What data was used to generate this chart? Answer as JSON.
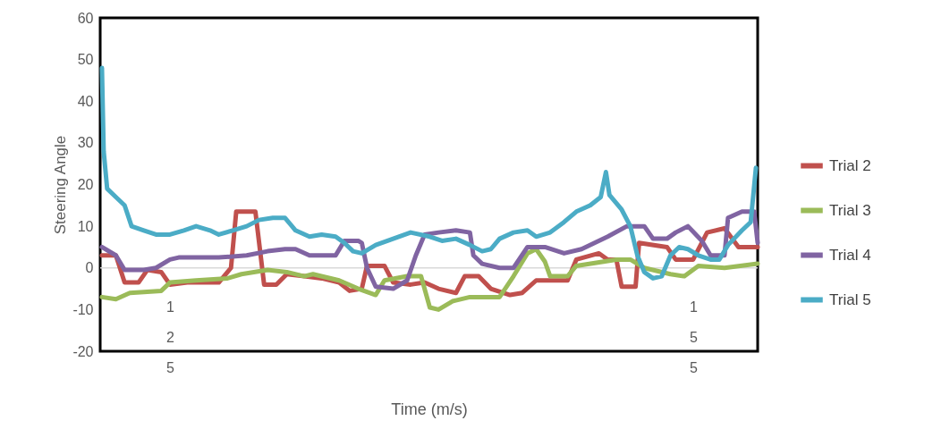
{
  "chart_data": {
    "type": "line",
    "xlabel": "Time (m/s)",
    "ylabel": "Steering Angle",
    "xlim": [
      121,
      158.7
    ],
    "xticks": [
      125,
      155
    ],
    "ylim": [
      -20,
      60
    ],
    "yticks": [
      -20,
      -10,
      0,
      10,
      20,
      30,
      40,
      50,
      60
    ],
    "grid": false,
    "legend": "right",
    "marker": "none",
    "line_style": "solid",
    "ref_lines": [
      {
        "axis": "y",
        "value": 0,
        "color": "#d9d9d9"
      }
    ],
    "series": [
      {
        "name": "Trial 2",
        "color": "#c0504d",
        "x": [
          121.1,
          121.9,
          122.4,
          123.2,
          123.7,
          124.5,
          125.0,
          126.0,
          127.8,
          128.5,
          128.8,
          129.9,
          130.4,
          131.1,
          131.7,
          132.7,
          133.7,
          134.7,
          135.3,
          136.0,
          136.3,
          137.3,
          137.8,
          138.8,
          139.6,
          140.4,
          141.4,
          141.9,
          142.7,
          143.4,
          144.5,
          145.2,
          146.0,
          147.8,
          148.3,
          149.6,
          150.1,
          150.6,
          150.9,
          151.7,
          151.9,
          153.5,
          154.0,
          155.0,
          155.8,
          156.8,
          157.6,
          158.7
        ],
        "values": [
          3,
          3,
          -3.5,
          -3.5,
          -0.5,
          -1,
          -4,
          -3.5,
          -3.5,
          0,
          13.5,
          13.5,
          -4,
          -4,
          -1.5,
          -2,
          -2.5,
          -3.5,
          -5.5,
          -5,
          0.5,
          0.5,
          -3.5,
          -4,
          -3.5,
          -5,
          -6,
          -2,
          -2,
          -5,
          -6.5,
          -6,
          -3,
          -3,
          2,
          3.5,
          2,
          2,
          -4.5,
          -4.5,
          6,
          5,
          2,
          2,
          8.5,
          9.5,
          5,
          5
        ]
      },
      {
        "name": "Trial 3",
        "color": "#9bbb59",
        "x": [
          121.1,
          121.9,
          122.7,
          124.5,
          125.0,
          126.5,
          128.3,
          129.1,
          130.6,
          131.7,
          132.7,
          133.2,
          134.7,
          135.8,
          136.8,
          137.3,
          138.6,
          139.4,
          139.9,
          140.4,
          141.2,
          142.2,
          143.9,
          144.7,
          145.5,
          146.0,
          146.5,
          146.8,
          147.8,
          148.3,
          150.6,
          151.4,
          152.2,
          153.7,
          154.5,
          155.3,
          156.8,
          158.7
        ],
        "values": [
          -7,
          -7.5,
          -6,
          -5.5,
          -3.5,
          -3,
          -2.5,
          -1.5,
          -0.5,
          -1,
          -2,
          -1.5,
          -3,
          -5,
          -6.5,
          -3,
          -2,
          -2,
          -9.5,
          -10,
          -8,
          -7,
          -7,
          -2,
          3.5,
          4.5,
          1.5,
          -2,
          -2,
          0.5,
          2,
          2,
          0,
          -1.5,
          -2,
          0.5,
          0,
          1
        ]
      },
      {
        "name": "Trial 4",
        "color": "#8064a2",
        "x": [
          121.1,
          121.9,
          122.4,
          123.5,
          124.2,
          125.0,
          125.5,
          127.8,
          129.4,
          130.6,
          131.6,
          132.2,
          133.0,
          134.5,
          135.0,
          135.8,
          136.0,
          136.3,
          136.8,
          137.8,
          138.6,
          139.1,
          139.6,
          140.4,
          141.4,
          142.2,
          142.4,
          142.9,
          143.9,
          144.7,
          145.5,
          146.5,
          147.6,
          148.6,
          150.1,
          151.2,
          152.2,
          152.7,
          153.5,
          154.0,
          154.7,
          155.5,
          156.0,
          156.8,
          157.0,
          157.8,
          158.5,
          158.7
        ],
        "values": [
          5,
          3,
          -0.5,
          -0.5,
          0,
          2,
          2.5,
          2.5,
          3,
          4,
          4.5,
          4.5,
          3,
          3,
          6.5,
          6.5,
          6,
          0,
          -4.5,
          -5,
          -3,
          3,
          8,
          8.5,
          9,
          8.5,
          3,
          1,
          0,
          0,
          5,
          5,
          3.5,
          4.5,
          7.5,
          10,
          10,
          7,
          7,
          8.5,
          10,
          6.5,
          3,
          3,
          12,
          13.5,
          13.5,
          6
        ]
      },
      {
        "name": "Trial 5",
        "color": "#4bacc6",
        "x": [
          121.1,
          121.2,
          121.4,
          121.9,
          122.4,
          122.8,
          123.5,
          124.2,
          125.0,
          125.8,
          126.5,
          127.3,
          127.8,
          128.6,
          129.4,
          130.1,
          130.9,
          131.6,
          132.2,
          133.0,
          133.7,
          134.5,
          135.0,
          135.5,
          136.0,
          136.8,
          137.8,
          138.8,
          139.9,
          140.6,
          141.4,
          142.2,
          142.9,
          143.4,
          143.9,
          144.7,
          145.5,
          146.0,
          146.8,
          147.6,
          148.3,
          149.1,
          149.7,
          150.0,
          150.2,
          150.9,
          151.4,
          151.8,
          152.2,
          152.7,
          153.2,
          153.7,
          154.2,
          154.7,
          155.3,
          156.0,
          156.5,
          157.0,
          157.8,
          158.3,
          158.6
        ],
        "values": [
          48,
          28,
          19,
          17,
          15,
          10,
          9,
          8,
          8,
          9,
          10,
          9,
          8,
          9,
          10,
          11.5,
          12,
          12,
          9,
          7.5,
          8,
          7.5,
          6,
          4,
          3.5,
          5.5,
          7,
          8.5,
          7.5,
          6.5,
          7,
          5.5,
          4,
          4.5,
          7,
          8.5,
          9,
          7.5,
          8.5,
          11,
          13.5,
          15,
          17,
          23,
          17.5,
          14,
          10,
          3,
          -1,
          -2.5,
          -2,
          3,
          5,
          4.5,
          3,
          2,
          2,
          5.5,
          9,
          11,
          24
        ]
      }
    ]
  }
}
